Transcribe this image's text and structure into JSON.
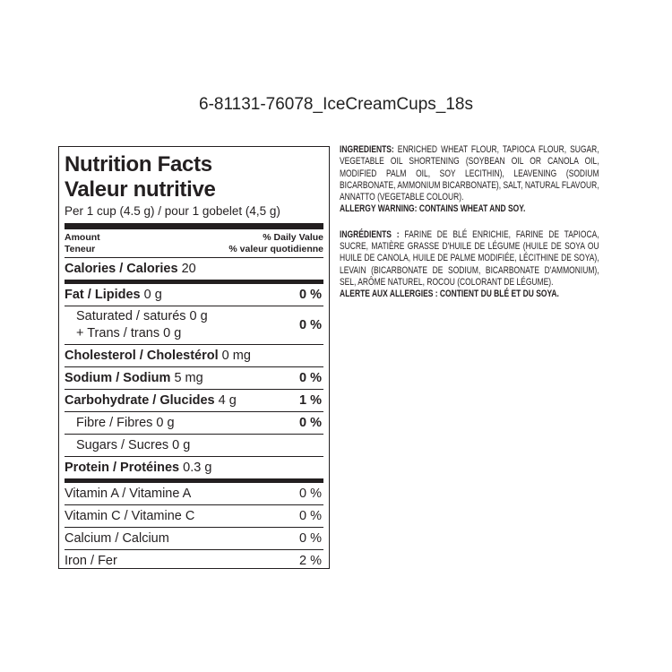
{
  "title": "6-81131-76078_IceCreamCups_18s",
  "panel": {
    "heading_en": "Nutrition Facts",
    "heading_fr": "Valeur nutritive",
    "serving": "Per 1 cup (4.5 g) / pour 1 gobelet (4,5 g)",
    "amount_en": "Amount",
    "amount_fr": "Teneur",
    "dv_en": "% Daily Value",
    "dv_fr": "% valeur quotidienne",
    "calories_label": "Calories / Calories",
    "calories_value": "20",
    "rows": [
      {
        "label": "Fat / Lipides",
        "value": "0 g",
        "pct": "0 %"
      },
      {
        "label": "Saturated / saturés 0 g",
        "label2": "+ Trans / trans 0 g",
        "pct": "0 %"
      },
      {
        "label": "Cholesterol / Cholestérol",
        "value": "0 mg"
      },
      {
        "label": "Sodium / Sodium",
        "value": "5 mg",
        "pct": "0 %"
      },
      {
        "label": "Carbohydrate / Glucides",
        "value": "4 g",
        "pct": "1 %"
      },
      {
        "label": "Fibre / Fibres 0 g",
        "pct": "0 %"
      },
      {
        "label": "Sugars / Sucres 0 g"
      },
      {
        "label": "Protein / Protéines",
        "value": "0.3 g"
      }
    ],
    "vitamins": [
      {
        "label": "Vitamin A / Vitamine A",
        "pct": "0 %"
      },
      {
        "label": "Vitamin C / Vitamine C",
        "pct": "0 %"
      },
      {
        "label": "Calcium / Calcium",
        "pct": "0 %"
      },
      {
        "label": "Iron / Fer",
        "pct": "2 %"
      }
    ]
  },
  "ingredients": {
    "en_label": "INGREDIENTS:",
    "en_text": "ENRICHED WHEAT FLOUR, TAPIOCA FLOUR, SUGAR, VEGETABLE OIL SHORTENING (SOYBEAN OIL OR CANOLA OIL, MODIFIED PALM OIL, SOY LECITHIN), LEAVENING (SODIUM BICARBONATE, AMMONIUM BICARBONATE), SALT, NATURAL FLAVOUR, ANNATTO (VEGETABLE COLOUR).",
    "en_allergy": "ALLERGY WARNING: CONTAINS WHEAT AND SOY.",
    "fr_label": "INGRÉDIENTS :",
    "fr_text": "FARINE DE BLÉ ENRICHIE, FARINE DE TAPIOCA, SUCRE, MATIÈRE GRASSE D'HUILE DE LÉGUME (HUILE DE SOYA OU HUILE DE CANOLA, HUILE DE PALME MODIFIÉE, LÉCITHINE DE SOYA), LEVAIN (BICARBONATE DE SODIUM, BICARBONATE D'AMMONIUM), SEL, ARÔME NATUREL, ROCOU (COLORANT DE LÉGUME).",
    "fr_allergy": "ALERTE AUX ALLERGIES : CONTIENT DU BLÉ ET DU SOYA."
  }
}
